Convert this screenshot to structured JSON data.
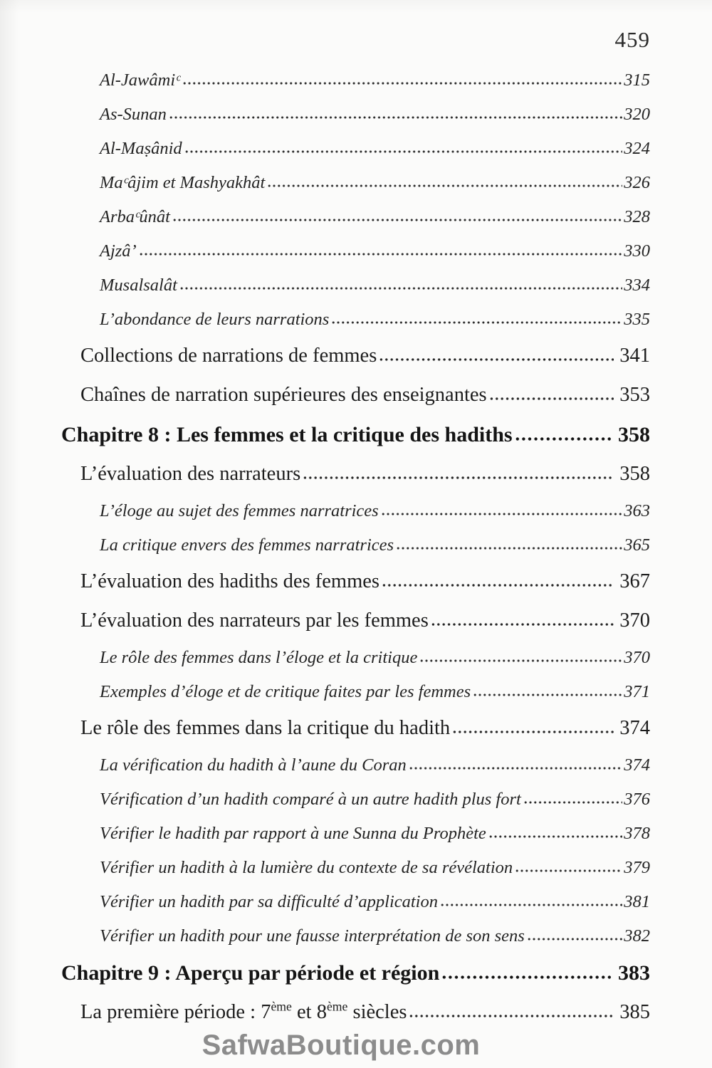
{
  "page": {
    "number": "459"
  },
  "watermark": {
    "text": "SafwaBoutique.com"
  },
  "toc": {
    "entries": [
      {
        "level": "sub",
        "label": "Al-Jawâmiᶜ",
        "page": "315"
      },
      {
        "level": "sub",
        "label": "As-Sunan",
        "page": "320"
      },
      {
        "level": "sub",
        "label": "Al-Maṣânid",
        "page": "324"
      },
      {
        "level": "sub",
        "label": "Maᶜâjim et Mashyakhât",
        "page": "326"
      },
      {
        "level": "sub",
        "label": "Arbaᶜûnât",
        "page": "328"
      },
      {
        "level": "sub",
        "label": "Ajzâ’",
        "page": "330"
      },
      {
        "level": "sub",
        "label": "Musalsalât",
        "page": "334"
      },
      {
        "level": "sub",
        "label": "L’abondance de leurs narrations",
        "page": "335"
      },
      {
        "level": "main",
        "label": "Collections de narrations de femmes",
        "page": "341"
      },
      {
        "level": "main",
        "label": "Chaînes de narration supérieures des enseignantes",
        "page": "353"
      },
      {
        "level": "chapter",
        "label": "Chapitre 8 : Les femmes et la critique des hadiths",
        "page": "358"
      },
      {
        "level": "main",
        "label": "L’évaluation des narrateurs",
        "page": "358"
      },
      {
        "level": "sub",
        "label": "L’éloge au sujet des femmes narratrices",
        "page": "363"
      },
      {
        "level": "sub",
        "label": "La critique envers des femmes narratrices",
        "page": "365"
      },
      {
        "level": "main",
        "label": "L’évaluation des hadiths des femmes",
        "page": "367"
      },
      {
        "level": "main",
        "label": "L’évaluation des narrateurs par les femmes",
        "page": "370"
      },
      {
        "level": "sub",
        "label": "Le rôle des femmes dans l’éloge et la critique",
        "page": "370"
      },
      {
        "level": "sub",
        "label": "Exemples d’éloge et de critique faites par les femmes",
        "page": "371"
      },
      {
        "level": "main",
        "label": "Le rôle des femmes dans la critique du hadith",
        "page": "374"
      },
      {
        "level": "sub",
        "label": "La vérification du hadith à l’aune du Coran",
        "page": "374"
      },
      {
        "level": "sub",
        "label": "Vérification d’un hadith comparé à un autre hadith plus fort",
        "page": "376"
      },
      {
        "level": "sub",
        "label": "Vérifier le hadith par rapport à une Sunna du Prophète",
        "page": "378"
      },
      {
        "level": "sub",
        "label": "Vérifier un hadith à la lumière du contexte de sa révélation",
        "page": "379"
      },
      {
        "level": "sub",
        "label": "Vérifier un hadith par sa difficulté d’application",
        "page": "381"
      },
      {
        "level": "sub",
        "label": "Vérifier un hadith pour une fausse interprétation de son sens",
        "page": "382"
      },
      {
        "level": "chapter",
        "label": "Chapitre 9 : Aperçu par période et région",
        "page": "383"
      },
      {
        "level": "main",
        "parts": [
          {
            "text": "La première période : 7"
          },
          {
            "text": "ème",
            "sup": true
          },
          {
            "text": " et 8"
          },
          {
            "text": "ème",
            "sup": true
          },
          {
            "text": " siècles"
          }
        ],
        "page": "385"
      }
    ]
  }
}
